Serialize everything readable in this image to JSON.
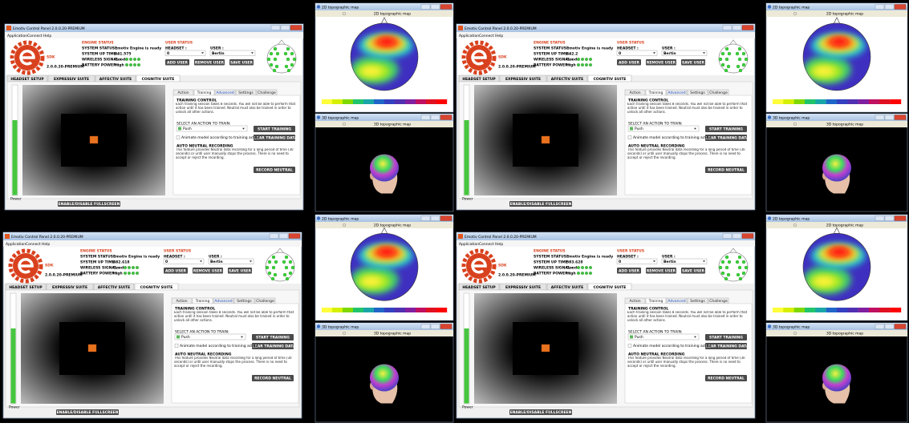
{
  "control_panel": {
    "title": "Emotiv Control Panel 2.0.0.20-PREMIUM",
    "menu": [
      "Application",
      "Connect",
      "Help"
    ],
    "logo": {
      "name": "SDK",
      "version": "2.0.0.20-PREMIUM"
    },
    "engine_status": {
      "heading": "ENGINE STATUS",
      "system_status_label": "SYSTEM STATUS :",
      "system_status": "Emotiv Engine is ready",
      "up_time_label": "SYSTEM UP TIME :",
      "wireless_label": "WIRELESS SIGNAL :",
      "wireless": "Good",
      "battery_label": "BATTERY POWER :",
      "battery": "High"
    },
    "user_status": {
      "heading": "USER STATUS",
      "headset_label": "HEADSET :",
      "user_label": "USER :",
      "headset": "0",
      "user": "Bertin",
      "buttons": [
        "ADD USER",
        "REMOVE USER",
        "SAVE USER"
      ]
    },
    "tabs": [
      "HEADSET SETUP",
      "EXPRESSIV SUITE",
      "AFFECTIV SUITE",
      "COGNITIV SUITE"
    ],
    "subtabs": [
      "Action",
      "Training",
      "Advanced",
      "Settings",
      "Challenge"
    ],
    "training": {
      "heading": "TRAINING CONTROL",
      "text": "Each training session takes 8 seconds. You will not be able to perform that action until it has been trained. Neutral must also be trained in order to unlock all other actions.",
      "select_label": "SELECT AN ACTION TO TRAIN:",
      "action": "Push",
      "start": "START TRAINING",
      "clear": "CLEAR TRAINING DATA",
      "animate": "Animate model according to training action"
    },
    "neutral": {
      "heading": "AUTO NEUTRAL RECORDING",
      "text": "This feature provides Neutral data recording for a long period of time (30 seconds) or until user manually stops the process. There is no need to accept or reject the recording.",
      "button": "RECORD NEUTRAL"
    },
    "power_label": "Power",
    "fullscreen": "ENABLE/DISABLE FULLSCREEN"
  },
  "map_2d": {
    "title": "2D topographic map",
    "header": "2D topographic map"
  },
  "map_3d": {
    "title": "3D topographic map",
    "header": "3D topographic map"
  },
  "panels": [
    {
      "system_up_time": "441.575"
    },
    {
      "system_up_time": "442.2"
    },
    {
      "system_up_time": "482.618"
    },
    {
      "system_up_time": "503.628"
    }
  ]
}
